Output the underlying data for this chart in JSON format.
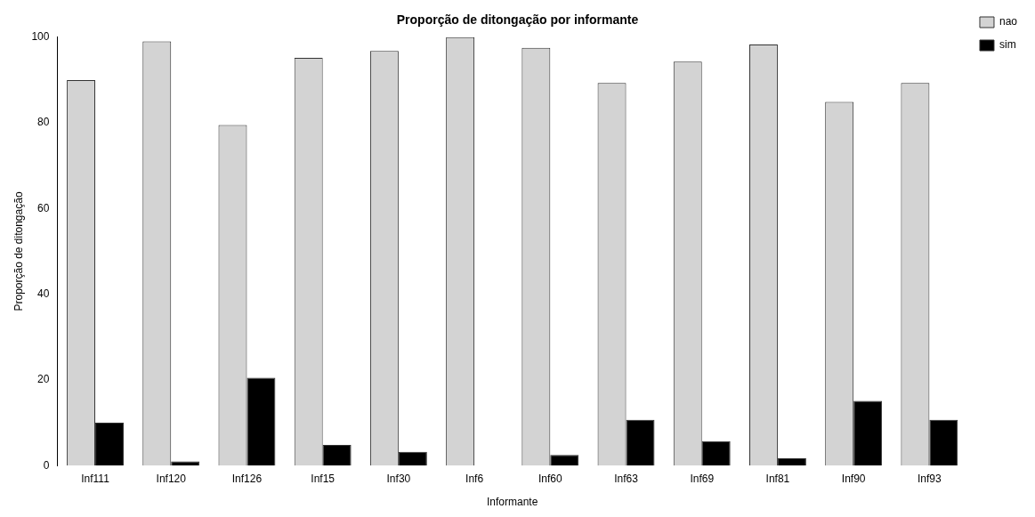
{
  "chart_data": {
    "type": "bar",
    "title": "Proporção de ditongação por informante",
    "xlabel": "Informante",
    "ylabel": "Proporção de ditongação",
    "categories": [
      "Inf111",
      "Inf120",
      "Inf126",
      "Inf15",
      "Inf30",
      "Inf6",
      "Inf60",
      "Inf63",
      "Inf69",
      "Inf81",
      "Inf90",
      "Inf93"
    ],
    "series": [
      {
        "name": "nao",
        "color": "#d3d3d3",
        "values": [
          90,
          99,
          79.5,
          95.2,
          96.8,
          100,
          97.5,
          89.3,
          94.3,
          98.3,
          84.9,
          89.3
        ]
      },
      {
        "name": "sim",
        "color": "#000000",
        "values": [
          10,
          1,
          20.5,
          4.8,
          3.2,
          0,
          2.5,
          10.7,
          5.7,
          1.7,
          15.1,
          10.7
        ]
      }
    ],
    "ylim": [
      0,
      100
    ],
    "yticks": [
      0,
      20,
      40,
      60,
      80,
      100
    ],
    "grid": false,
    "legend": "right"
  }
}
